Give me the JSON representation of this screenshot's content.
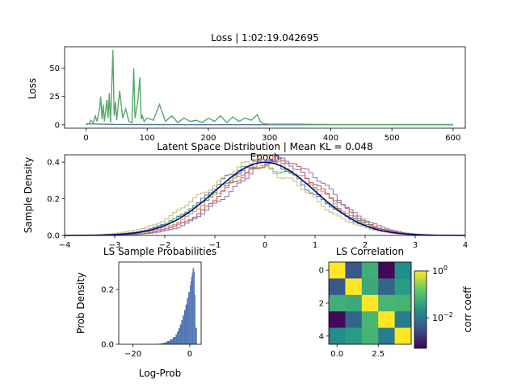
{
  "figure": {
    "background": "#ffffff"
  },
  "chart_data": [
    {
      "id": "loss",
      "type": "line",
      "title": "Loss | 1:02:19.042695",
      "xlabel": "Epoch",
      "ylabel": "Loss",
      "xlim": [
        -35,
        620
      ],
      "ylim": [
        -3,
        69
      ],
      "xticks": [
        0,
        100,
        200,
        300,
        400,
        500,
        600
      ],
      "yticks": [
        0,
        25,
        50
      ],
      "grid": false,
      "series": [
        {
          "color": "#4c72b0",
          "x": [
            0,
            10,
            20,
            30,
            40,
            50,
            60,
            100,
            200,
            300,
            400,
            500,
            600
          ],
          "y": [
            1.0,
            0.8,
            0.6,
            0.5,
            0.4,
            0.3,
            0.3,
            0.2,
            0.1,
            0.1,
            0.1,
            0.1,
            0.1
          ]
        },
        {
          "color": "#55a868",
          "x": [
            0,
            5,
            8,
            12,
            15,
            18,
            22,
            24,
            26,
            28,
            30,
            32,
            34,
            36,
            38,
            40,
            42,
            44,
            46,
            48,
            50,
            55,
            60,
            65,
            70,
            75,
            78,
            80,
            85,
            88,
            90,
            92,
            95,
            100,
            110,
            120,
            130,
            140,
            150,
            160,
            170,
            180,
            190,
            200,
            210,
            220,
            230,
            240,
            250,
            260,
            270,
            280,
            285,
            290,
            300,
            350,
            400,
            450,
            500,
            550,
            600
          ],
          "y": [
            0,
            1,
            4,
            2,
            8,
            3,
            14,
            25,
            5,
            18,
            3,
            12,
            22,
            6,
            28,
            2,
            35,
            66,
            8,
            20,
            4,
            30,
            6,
            14,
            3,
            2,
            50,
            6,
            22,
            42,
            5,
            8,
            3,
            6,
            4,
            18,
            3,
            8,
            2,
            6,
            3,
            4,
            2,
            6,
            3,
            8,
            2,
            7,
            3,
            6,
            4,
            9,
            3,
            1,
            0.5,
            0.5,
            0.3,
            0.3,
            0.2,
            0.2,
            0.2
          ]
        }
      ]
    },
    {
      "id": "latent",
      "type": "line",
      "title": "Latent Space Distribution | Mean KL = 0.048",
      "xlabel": "",
      "ylabel": "Sample Density",
      "xlim": [
        -4,
        4
      ],
      "ylim": [
        0,
        0.44
      ],
      "xticks": [
        -4,
        -3,
        -2,
        -1,
        0,
        1,
        2,
        3,
        4
      ],
      "yticks": [
        0.0,
        0.2,
        0.4
      ],
      "grid": false,
      "reference_curve": {
        "color": "#000080",
        "mean": 0,
        "std": 1
      },
      "series": [
        {
          "color": "#4c72b0",
          "mean": -0.05,
          "std": 1.02
        },
        {
          "color": "#dd8452",
          "mean": 0.1,
          "std": 1.0
        },
        {
          "color": "#55a868",
          "mean": 0.0,
          "std": 1.05
        },
        {
          "color": "#c44e52",
          "mean": 0.2,
          "std": 0.98
        },
        {
          "color": "#8172b3",
          "mean": 0.3,
          "std": 0.97
        },
        {
          "color": "#ccb974",
          "mean": -0.2,
          "std": 1.05
        }
      ]
    },
    {
      "id": "logprob",
      "type": "bar",
      "title": "LS Sample Probabilities",
      "xlabel": "Log-Prob",
      "ylabel": "Prob Density",
      "xlim": [
        -25,
        4
      ],
      "ylim": [
        0,
        0.3
      ],
      "xticks": [
        -20,
        0
      ],
      "yticks": [
        0.0,
        0.2
      ],
      "color": "#4c72b0",
      "bin_edges": [
        -12,
        -11,
        -10,
        -9,
        -8,
        -7,
        -6,
        -5,
        -4.5,
        -4,
        -3.5,
        -3,
        -2.5,
        -2,
        -1.5,
        -1,
        -0.5,
        0,
        0.25,
        0.5,
        0.75,
        1.0,
        1.25,
        1.5,
        1.75,
        2.0,
        2.5
      ],
      "values": [
        0.001,
        0.002,
        0.004,
        0.007,
        0.012,
        0.018,
        0.026,
        0.036,
        0.046,
        0.058,
        0.072,
        0.088,
        0.105,
        0.125,
        0.145,
        0.168,
        0.19,
        0.215,
        0.23,
        0.245,
        0.26,
        0.275,
        0.28,
        0.265,
        0.18,
        0.06
      ]
    },
    {
      "id": "corr",
      "type": "heatmap",
      "title": "LS Correlation",
      "xlabel": "",
      "ylabel": "",
      "xlim": [
        -0.5,
        4.5
      ],
      "ylim": [
        4.5,
        -0.5
      ],
      "xticks": [
        0.0,
        2.5
      ],
      "yticks": [
        0,
        2,
        4
      ],
      "colormap": "viridis",
      "color_scale": "log",
      "color_range": [
        0.0005,
        1
      ],
      "colorbar_label": "corr coeff",
      "colorbar_ticks": [
        1,
        0.01
      ],
      "colorbar_tick_labels": [
        {
          "base": "10",
          "exp": "0"
        },
        {
          "base": "10",
          "exp": "−2"
        }
      ],
      "matrix": [
        [
          1.0,
          0.004,
          0.06,
          0.0006,
          0.02
        ],
        [
          0.004,
          1.0,
          0.05,
          0.006,
          0.03
        ],
        [
          0.06,
          0.05,
          1.0,
          0.08,
          0.07
        ],
        [
          0.0006,
          0.006,
          0.08,
          1.0,
          0.012
        ],
        [
          0.02,
          0.03,
          0.07,
          0.012,
          1.0
        ]
      ]
    }
  ]
}
